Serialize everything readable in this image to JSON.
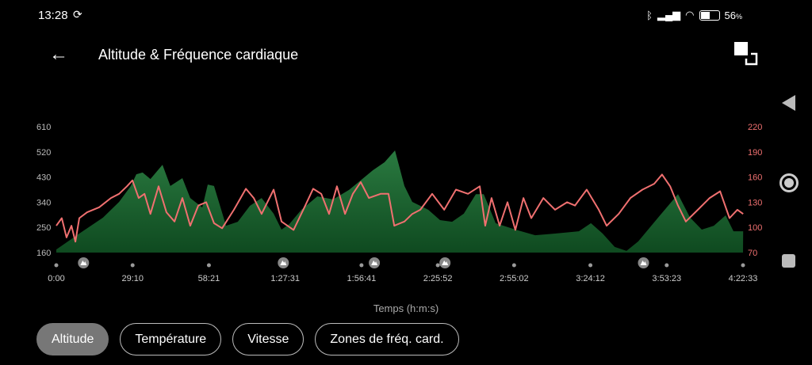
{
  "status_bar": {
    "time": "13:28",
    "sync_icon": "sync-icon",
    "battery": "56",
    "battery_unit": "%",
    "battery_level": 0.56,
    "icons": [
      "bluetooth-icon",
      "signal-icon",
      "wifi-icon",
      "battery-icon"
    ]
  },
  "header": {
    "back_icon": "arrow-left-icon",
    "title": "Altitude & Fréquence cardiaque",
    "fullscreen_icon": "fullscreen-icon"
  },
  "nav": {
    "back": "triangle-back-icon",
    "home": "circle-home-icon",
    "recent": "square-recent-icon"
  },
  "chart_data": {
    "type": "area",
    "xlabel": "Temps (h:m:s)",
    "x_ticks": [
      "0:00",
      "29:10",
      "58:21",
      "1:27:31",
      "1:56:41",
      "2:25:52",
      "2:55:02",
      "3:24:12",
      "3:53:23",
      "4:22:33"
    ],
    "x_range_minutes": [
      0,
      262.55
    ],
    "y_left": {
      "ticks": [
        "610",
        "520",
        "430",
        "340",
        "250",
        "160"
      ],
      "range": [
        160,
        610
      ]
    },
    "y_right": {
      "ticks": [
        "220",
        "190",
        "160",
        "130",
        "100",
        "70"
      ],
      "range": [
        70,
        220
      ],
      "color": "#f07070"
    },
    "grid": false,
    "colors": {
      "altitude_top": "#2a7a40",
      "altitude_bottom": "#0f4a20",
      "heart_rate": "#f07070",
      "marker": "#9a9a9a"
    },
    "summit_markers_minutes": [
      10.4,
      86.8,
      121.6,
      148.6,
      224.5
    ],
    "series": [
      {
        "axis": "left",
        "points": [
          [
            0,
            171
          ],
          [
            8.8,
            228
          ],
          [
            17.9,
            285
          ],
          [
            24,
            341
          ],
          [
            28.5,
            398
          ],
          [
            30.6,
            440
          ],
          [
            33,
            446
          ],
          [
            36,
            423
          ],
          [
            40.6,
            474
          ],
          [
            43.6,
            398
          ],
          [
            48.2,
            426
          ],
          [
            51.2,
            355
          ],
          [
            55.8,
            321
          ],
          [
            57.9,
            403
          ],
          [
            60.3,
            398
          ],
          [
            64.9,
            256
          ],
          [
            69.4,
            270
          ],
          [
            74,
            327
          ],
          [
            78.5,
            355
          ],
          [
            83.1,
            299
          ],
          [
            86.1,
            242
          ],
          [
            89.1,
            262
          ],
          [
            93.7,
            313
          ],
          [
            99.8,
            361
          ],
          [
            105.8,
            350
          ],
          [
            111.9,
            384
          ],
          [
            116.4,
            418
          ],
          [
            121,
            454
          ],
          [
            125.5,
            483
          ],
          [
            129.5,
            525
          ],
          [
            133.1,
            398
          ],
          [
            136.1,
            341
          ],
          [
            142.2,
            313
          ],
          [
            146.7,
            276
          ],
          [
            151.3,
            270
          ],
          [
            155.8,
            299
          ],
          [
            160.4,
            369
          ],
          [
            163.4,
            369
          ],
          [
            168,
            265
          ],
          [
            175.5,
            242
          ],
          [
            183.1,
            222
          ],
          [
            190.7,
            228
          ],
          [
            199.8,
            236
          ],
          [
            204.4,
            265
          ],
          [
            208.9,
            228
          ],
          [
            213.5,
            180
          ],
          [
            218,
            166
          ],
          [
            222.5,
            200
          ],
          [
            230.1,
            285
          ],
          [
            237.7,
            369
          ],
          [
            242.3,
            285
          ],
          [
            246.8,
            242
          ],
          [
            251.4,
            256
          ],
          [
            255.9,
            293
          ],
          [
            258.9,
            236
          ],
          [
            262.6,
            236
          ]
        ]
      },
      {
        "axis": "right",
        "points": [
          [
            0,
            102
          ],
          [
            2.1,
            111
          ],
          [
            3.9,
            88
          ],
          [
            5.8,
            102
          ],
          [
            7.3,
            83
          ],
          [
            8.8,
            111
          ],
          [
            11.8,
            118
          ],
          [
            16.4,
            124
          ],
          [
            20.9,
            135
          ],
          [
            24,
            140
          ],
          [
            27,
            149
          ],
          [
            29.1,
            156
          ],
          [
            31.5,
            135
          ],
          [
            33.7,
            140
          ],
          [
            36,
            116
          ],
          [
            39.1,
            149
          ],
          [
            42.1,
            118
          ],
          [
            45.2,
            107
          ],
          [
            48.2,
            135
          ],
          [
            51.2,
            102
          ],
          [
            54.3,
            126
          ],
          [
            57.3,
            130
          ],
          [
            60.3,
            105
          ],
          [
            63.4,
            99
          ],
          [
            67.9,
            121
          ],
          [
            72.5,
            146
          ],
          [
            75.5,
            135
          ],
          [
            78.5,
            116
          ],
          [
            83.1,
            145
          ],
          [
            86.1,
            107
          ],
          [
            90.7,
            97
          ],
          [
            95.2,
            126
          ],
          [
            98.2,
            146
          ],
          [
            101.3,
            140
          ],
          [
            104.3,
            116
          ],
          [
            107.3,
            149
          ],
          [
            110.4,
            116
          ],
          [
            113.4,
            140
          ],
          [
            116.4,
            154
          ],
          [
            119.5,
            135
          ],
          [
            124,
            140
          ],
          [
            127,
            140
          ],
          [
            129.2,
            102
          ],
          [
            133.1,
            107
          ],
          [
            136.1,
            116
          ],
          [
            139.2,
            121
          ],
          [
            143.7,
            140
          ],
          [
            148.3,
            121
          ],
          [
            152.8,
            145
          ],
          [
            157.4,
            140
          ],
          [
            161.9,
            149
          ],
          [
            164,
            102
          ],
          [
            166.4,
            135
          ],
          [
            169.5,
            102
          ],
          [
            172.5,
            130
          ],
          [
            175.5,
            97
          ],
          [
            178.6,
            135
          ],
          [
            181.6,
            111
          ],
          [
            186.2,
            135
          ],
          [
            190.7,
            121
          ],
          [
            195.3,
            130
          ],
          [
            198.3,
            126
          ],
          [
            202.8,
            145
          ],
          [
            207.4,
            121
          ],
          [
            210.4,
            102
          ],
          [
            215,
            116
          ],
          [
            219.5,
            135
          ],
          [
            224.1,
            145
          ],
          [
            228.6,
            152
          ],
          [
            231.6,
            163
          ],
          [
            234.7,
            149
          ],
          [
            237.7,
            126
          ],
          [
            240.7,
            107
          ],
          [
            245.3,
            121
          ],
          [
            249.8,
            135
          ],
          [
            253.8,
            143
          ],
          [
            257.4,
            111
          ],
          [
            260.4,
            121
          ],
          [
            262.6,
            116
          ]
        ]
      }
    ]
  },
  "chips": [
    {
      "label": "Altitude",
      "active": true
    },
    {
      "label": "Température"
    },
    {
      "label": "Vitesse"
    },
    {
      "label": "Zones de fréq. card."
    }
  ]
}
